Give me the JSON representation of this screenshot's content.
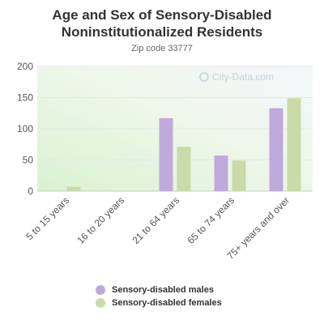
{
  "chart_data": {
    "type": "bar",
    "title_line1": "Age and Sex of Sensory-Disabled",
    "title_line2": "Noninstitutionalized Residents",
    "subtitle": "Zip code 33777",
    "watermark": "City-Data.com",
    "categories": [
      "5 to 15 years",
      "16 to 20 years",
      "21 to 64 years",
      "65 to 74 years",
      "75+ years and over"
    ],
    "series": [
      {
        "name": "Sensory-disabled males",
        "color": "#c0a9dc",
        "values": [
          0,
          0,
          117,
          57,
          133
        ]
      },
      {
        "name": "Sensory-disabled females",
        "color": "#c8dba8",
        "values": [
          7,
          0,
          71,
          49,
          149
        ]
      }
    ],
    "ylim": [
      0,
      200
    ],
    "yticks": [
      0,
      50,
      100,
      150,
      200
    ],
    "grid": true,
    "legend_position": "bottom"
  }
}
